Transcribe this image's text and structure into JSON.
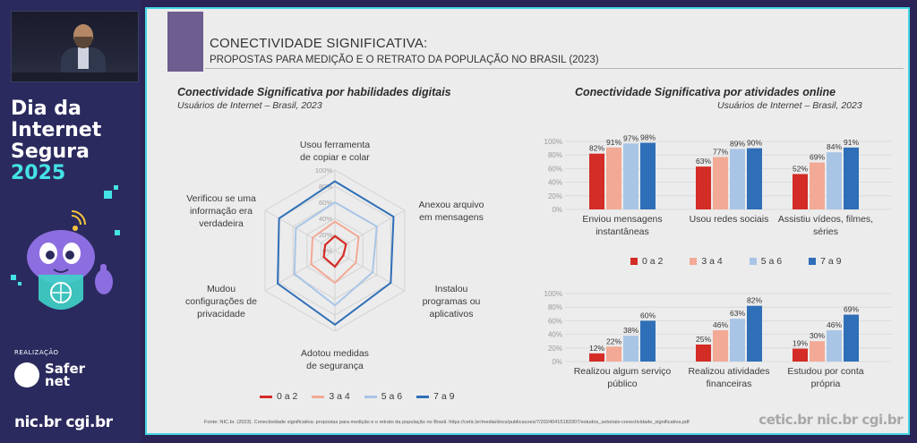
{
  "event": {
    "title_line1": "Dia da",
    "title_line2": "Internet",
    "title_line3": "Segura",
    "year": "2025",
    "realizacao_label": "REALIZAÇÃO",
    "org_name_line1": "Safer",
    "org_name_line2": "net",
    "bottom_logos": "nic.br cgi.br"
  },
  "slide": {
    "title": "CONECTIVIDADE SIGNIFICATIVA:",
    "subtitle": "PROPOSTAS PARA MEDIÇÃO E O RETRATO DA POPULAÇÃO NO BRASIL (2023)",
    "source": "Fonte: NIC.br. (2023). Conectividade significativa: propostas para medição e o retrato da população no Brasil. https://cetic.br/media/docs/publicacoes/7/20240415183307/estudos_setoriais-conectividade_significativa.pdf",
    "footer_logos": "cetic.br nic.br cgi.br",
    "colors": {
      "g0a2": "#d42c26",
      "g3a4": "#f2a995",
      "g5a6": "#a9c5e6",
      "g7a9": "#2f6fb7"
    }
  },
  "chart_data": [
    {
      "type": "radar",
      "title": "Conectividade Significativa por habilidades digitais",
      "subtitle": "Usuários de Internet – Brasil, 2023",
      "axes": [
        "Usou ferramenta de copiar e colar",
        "Anexou arquivo em mensagens",
        "Instalou programas ou aplicativos",
        "Adotou medidas de segurança",
        "Mudou configurações de privacidade",
        "Verificou se uma informação era verdadeira"
      ],
      "axis_labels": {
        "a0_l1": "Usou ferramenta",
        "a0_l2": "de copiar e colar",
        "a1_l1": "Anexou arquivo",
        "a1_l2": "em mensagens",
        "a2_l1": "Instalou",
        "a2_l2": "programas ou",
        "a2_l3": "aplicativos",
        "a3_l1": "Adotou medidas",
        "a3_l2": "de segurança",
        "a4_l1": "Mudou",
        "a4_l2": "configurações de",
        "a4_l3": "privacidade",
        "a5_l1": "Verificou se uma",
        "a5_l2": "informação era",
        "a5_l3": "verdadeira"
      },
      "ticks": [
        "0%",
        "20%",
        "40%",
        "60%",
        "80%",
        "100%"
      ],
      "rlim": [
        0,
        100
      ],
      "series": [
        {
          "name": "0 a 2",
          "values": [
            18,
            16,
            12,
            20,
            16,
            14
          ]
        },
        {
          "name": "3 a 4",
          "values": [
            36,
            34,
            30,
            40,
            34,
            32
          ]
        },
        {
          "name": "5 a 6",
          "values": [
            60,
            60,
            54,
            68,
            58,
            56
          ]
        },
        {
          "name": "7 a 9",
          "values": [
            86,
            84,
            80,
            92,
            82,
            80
          ]
        }
      ],
      "legend_position": "bottom"
    },
    {
      "type": "bar",
      "title": "Conectividade Significativa por atividades online",
      "subtitle": "Usuários de Internet – Brasil, 2023",
      "ylim": [
        0,
        100
      ],
      "yticks": [
        "0%",
        "20%",
        "40%",
        "60%",
        "80%",
        "100%"
      ],
      "series_names": [
        "0 a 2",
        "3 a 4",
        "5 a 6",
        "7 a 9"
      ],
      "panels": [
        {
          "groups": [
            {
              "label_l1": "Enviou mensagens",
              "label_l2": "instantâneas",
              "values": [
                82,
                91,
                97,
                98
              ],
              "labels": [
                "82%",
                "91%",
                "97%",
                "98%"
              ]
            },
            {
              "label_l1": "Usou redes sociais",
              "label_l2": "",
              "values": [
                63,
                77,
                89,
                90
              ],
              "labels": [
                "63%",
                "77%",
                "89%",
                "90%"
              ]
            },
            {
              "label_l1": "Assistiu vídeos, filmes,",
              "label_l2": "séries",
              "values": [
                52,
                69,
                84,
                91
              ],
              "labels": [
                "52%",
                "69%",
                "84%",
                "91%"
              ]
            }
          ]
        },
        {
          "groups": [
            {
              "label_l1": "Realizou algum serviço",
              "label_l2": "público",
              "values": [
                12,
                22,
                38,
                60
              ],
              "labels": [
                "12%",
                "22%",
                "38%",
                "60%"
              ]
            },
            {
              "label_l1": "Realizou atividades",
              "label_l2": "financeiras",
              "values": [
                25,
                46,
                63,
                82
              ],
              "labels": [
                "25%",
                "46%",
                "63%",
                "82%"
              ]
            },
            {
              "label_l1": "Estudou por conta",
              "label_l2": "própria",
              "values": [
                19,
                30,
                46,
                69
              ],
              "labels": [
                "19%",
                "30%",
                "46%",
                "69%"
              ]
            }
          ]
        }
      ],
      "legend_position": "between panels"
    }
  ]
}
